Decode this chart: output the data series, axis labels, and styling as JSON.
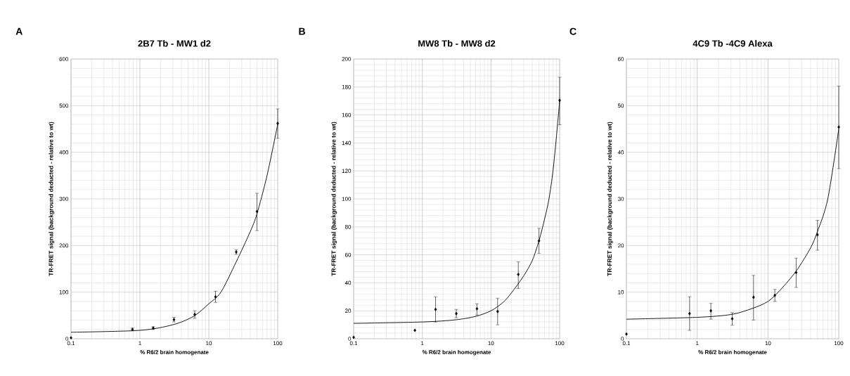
{
  "chart_data": [
    {
      "type": "scatter",
      "title": "2B7 Tb - MW1 d2",
      "xlabel": "% R6/2 brain homogenate",
      "ylabel": "TR-FRET signal (background deducted - relative to wt)",
      "annotations": [
        "A"
      ],
      "log": "x",
      "grid": true,
      "xlim": [
        0.1,
        100
      ],
      "xticks": [
        0.1,
        1,
        10,
        100
      ],
      "ylim": [
        0,
        600
      ],
      "yticks": [
        0,
        100,
        200,
        300,
        400,
        500,
        600
      ],
      "series": [
        {
          "type": "scatter",
          "color": "#000000",
          "marker": "diamond",
          "x": [
            0.1,
            0.78,
            1.56,
            3.125,
            6.25,
            12.5,
            25,
            50,
            100
          ],
          "values": [
            2,
            20,
            23,
            41,
            52,
            90,
            186,
            273,
            462
          ],
          "errors": [
            null,
            [
              17,
              23
            ],
            [
              20,
              26
            ],
            [
              36,
              46
            ],
            [
              44,
              60
            ],
            [
              78,
              102
            ],
            [
              181,
              191
            ],
            [
              232,
              312
            ],
            [
              430,
              493
            ]
          ]
        },
        {
          "type": "line",
          "color": "#000000",
          "marker": "none",
          "x": [
            0.1,
            1,
            3,
            6,
            10,
            15,
            25,
            40,
            50,
            70,
            100
          ],
          "values": [
            14,
            18,
            30,
            48,
            75,
            100,
            165,
            230,
            268,
            350,
            460
          ]
        }
      ]
    },
    {
      "type": "scatter",
      "title": "MW8 Tb - MW8 d2",
      "xlabel": "% R6/2 brain homogenate",
      "ylabel": "TR-FRET signal (background deducted - relative to wt)",
      "annotations": [
        "B"
      ],
      "log": "x",
      "grid": true,
      "xlim": [
        0.1,
        100
      ],
      "xticks": [
        0.1,
        1,
        10,
        100
      ],
      "ylim": [
        0,
        200
      ],
      "yticks": [
        0,
        20,
        40,
        60,
        80,
        100,
        120,
        140,
        160,
        180,
        200
      ],
      "series": [
        {
          "type": "scatter",
          "color": "#000000",
          "marker": "diamond",
          "x": [
            0.1,
            0.78,
            1.56,
            3.125,
            6.25,
            12.5,
            25,
            50,
            100
          ],
          "values": [
            1,
            6,
            21,
            18,
            21.5,
            19.5,
            46,
            70,
            170.5
          ],
          "errors": [
            null,
            null,
            [
              12,
              30
            ],
            [
              15,
              21
            ],
            [
              17,
              25
            ],
            [
              10,
              29
            ],
            [
              36,
              55
            ],
            [
              61,
              79
            ],
            [
              153,
              187
            ]
          ]
        },
        {
          "type": "line",
          "color": "#000000",
          "marker": "none",
          "x": [
            0.1,
            1,
            3,
            6,
            10,
            15,
            20,
            30,
            40,
            50,
            60,
            70,
            80,
            90,
            100
          ],
          "values": [
            11,
            12,
            13.5,
            16,
            20,
            26,
            33,
            45,
            56,
            70,
            85,
            100,
            120,
            145,
            170
          ]
        }
      ]
    },
    {
      "type": "scatter",
      "title": "4C9 Tb -4C9 Alexa",
      "xlabel": "% R6/2 brain homogenate",
      "ylabel": "TR-FRET signal (background deducted - relative to wt)",
      "annotations": [
        "C"
      ],
      "log": "x",
      "grid": true,
      "xlim": [
        0.1,
        100
      ],
      "xticks": [
        0.1,
        1,
        10,
        100
      ],
      "ylim": [
        0,
        60
      ],
      "yticks": [
        0,
        10,
        20,
        30,
        40,
        50,
        60
      ],
      "series": [
        {
          "type": "scatter",
          "color": "#000000",
          "marker": "diamond",
          "x": [
            0.1,
            0.78,
            1.56,
            3.125,
            6.25,
            12.5,
            25,
            50,
            100
          ],
          "values": [
            1,
            5.4,
            6,
            4.3,
            8.9,
            9.3,
            14.2,
            22.3,
            45.4
          ],
          "errors": [
            null,
            [
              1.8,
              9
            ],
            [
              4.2,
              7.6
            ],
            [
              2.9,
              5.6
            ],
            [
              4,
              13.6
            ],
            [
              8,
              10.6
            ],
            [
              11,
              17.3
            ],
            [
              19,
              25.4
            ],
            [
              36.5,
              54.2
            ]
          ]
        },
        {
          "type": "line",
          "color": "#000000",
          "marker": "none",
          "x": [
            0.1,
            1,
            3,
            6,
            10,
            15,
            25,
            40,
            50,
            70,
            100
          ],
          "values": [
            4.2,
            4.6,
            5.2,
            6.5,
            8,
            10.5,
            14.5,
            19.5,
            23,
            30,
            45
          ]
        }
      ]
    }
  ]
}
